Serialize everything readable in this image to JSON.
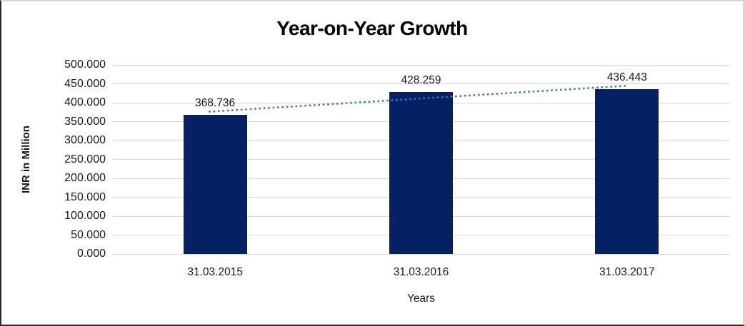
{
  "chart_data": {
    "type": "bar",
    "title": "Year-on-Year Growth",
    "xlabel": "Years",
    "ylabel": "INR in Million",
    "categories": [
      "31.03.2015",
      "31.03.2016",
      "31.03.2017"
    ],
    "values": [
      368.736,
      428.259,
      436.443
    ],
    "data_labels": [
      "368.736",
      "428.259",
      "436.443"
    ],
    "ylim": [
      0,
      500
    ],
    "ytick_step": 50,
    "ytick_labels": [
      "0.000",
      "50.000",
      "100.000",
      "150.000",
      "200.000",
      "250.000",
      "300.000",
      "350.000",
      "400.000",
      "450.000",
      "500.000"
    ],
    "grid": true,
    "legend": "none",
    "bar_color": "#052163",
    "gridline_color": "#d9d9d9",
    "trendline": {
      "type": "linear",
      "style": "dotted",
      "color": "#4472c4"
    }
  }
}
